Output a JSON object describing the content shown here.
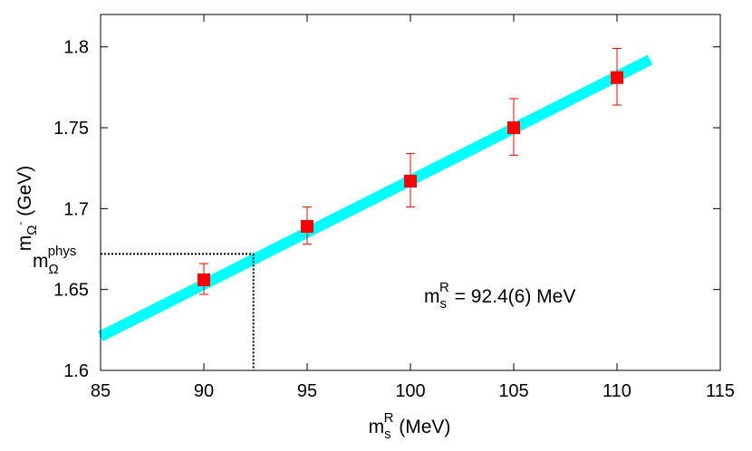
{
  "chart_data": {
    "type": "scatter",
    "x": [
      90,
      95,
      100,
      105,
      110
    ],
    "y": [
      1.656,
      1.689,
      1.717,
      1.75,
      1.781
    ],
    "yerr_low": [
      1.647,
      1.678,
      1.701,
      1.733,
      1.764
    ],
    "yerr_high": [
      1.666,
      1.701,
      1.734,
      1.768,
      1.799
    ],
    "fit_line": {
      "x": [
        85,
        111.6
      ],
      "y": [
        1.621,
        1.792
      ],
      "color": "#00ffff"
    },
    "marker_color": "#ff0000",
    "xlim": [
      85,
      115
    ],
    "ylim": [
      1.6,
      1.82
    ],
    "xticks": [
      "85",
      "90",
      "95",
      "100",
      "105",
      "110",
      "115"
    ],
    "yticks": [
      "1.6",
      "1.65",
      "1.7",
      "1.75",
      "1.8"
    ],
    "xlabel": {
      "main": "m",
      "sub": "s",
      "sup": "R",
      "unit": " (MeV)"
    },
    "ylabel": {
      "main": "m",
      "sub": "Ω",
      "sup": "-",
      "unit": " (GeV)"
    },
    "phys_label": {
      "main": "m",
      "sub": "Ω",
      "sup": "phys"
    },
    "phys_point": {
      "x": 92.4,
      "y": 1.672
    },
    "annotation": {
      "main": "m",
      "sub": "s",
      "sup": "R",
      "rest": " = 92.4(6) MeV"
    },
    "grid": false
  }
}
